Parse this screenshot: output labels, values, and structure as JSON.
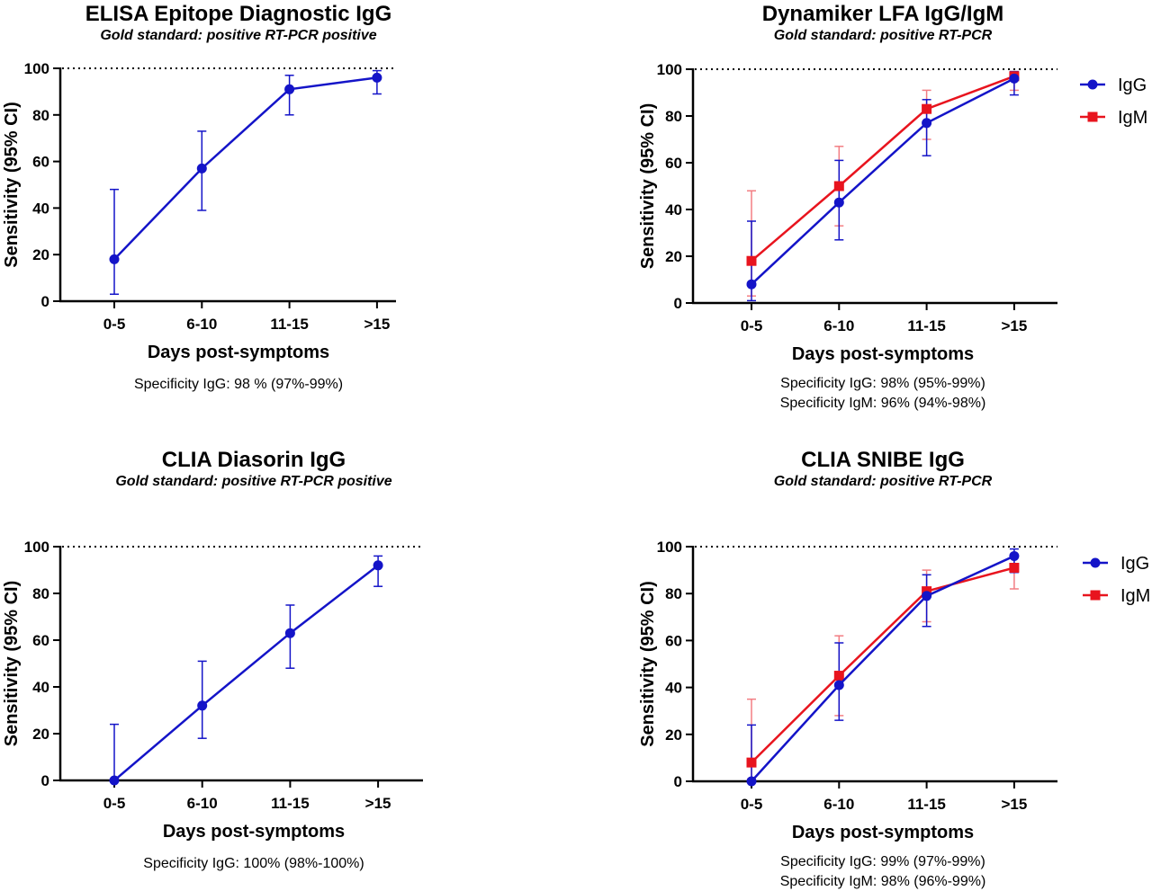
{
  "chart_data": [
    {
      "type": "line",
      "title": "ELISA Epitope Diagnostic IgG",
      "subtitle": "Gold standard: positive RT-PCR positive",
      "xlabel": "Days post-symptoms",
      "ylabel": "Sensitivity (95% CI)",
      "categories": [
        "0-5",
        "6-10",
        "11-15",
        ">15"
      ],
      "ylim": [
        0,
        100
      ],
      "yticks": [
        0,
        20,
        40,
        60,
        80,
        100
      ],
      "reference_line": 100,
      "series": [
        {
          "color": "#1414c8",
          "marker": "circle",
          "values": [
            18,
            57,
            91,
            96
          ],
          "ci_low": [
            3,
            39,
            80,
            89
          ],
          "ci_high": [
            48,
            73,
            97,
            99
          ]
        }
      ],
      "legend": [],
      "notes": [
        "Specificity IgG: 98 % (97%-99%)"
      ]
    },
    {
      "type": "line",
      "title": "Dynamiker LFA IgG/IgM",
      "subtitle": "Gold standard: positive RT-PCR",
      "xlabel": "Days post-symptoms",
      "ylabel": "Sensitivity (95% CI)",
      "categories": [
        "0-5",
        "6-10",
        "11-15",
        ">15"
      ],
      "ylim": [
        0,
        100
      ],
      "yticks": [
        0,
        20,
        40,
        60,
        80,
        100
      ],
      "reference_line": 100,
      "series": [
        {
          "name": "IgM",
          "color": "#e8141e",
          "marker": "square",
          "values": [
            18,
            50,
            83,
            97
          ],
          "ci_low": [
            3,
            33,
            70,
            91
          ],
          "ci_high": [
            48,
            67,
            91,
            99
          ]
        },
        {
          "name": "IgG",
          "color": "#1414c8",
          "marker": "circle",
          "values": [
            8,
            43,
            77,
            96
          ],
          "ci_low": [
            1,
            27,
            63,
            89
          ],
          "ci_high": [
            35,
            61,
            87,
            99
          ]
        }
      ],
      "legend": [
        "IgG",
        "IgM"
      ],
      "notes": [
        "Specificity IgG: 98% (95%-99%)",
        "Specificity IgM: 96% (94%-98%)"
      ]
    },
    {
      "type": "line",
      "title": "CLIA Diasorin IgG",
      "subtitle": "Gold standard: positive RT-PCR positive",
      "xlabel": "Days post-symptoms",
      "ylabel": "Sensitivity (95% CI)",
      "categories": [
        "0-5",
        "6-10",
        "11-15",
        ">15"
      ],
      "ylim": [
        0,
        100
      ],
      "yticks": [
        0,
        20,
        40,
        60,
        80,
        100
      ],
      "reference_line": 100,
      "series": [
        {
          "color": "#1414c8",
          "marker": "circle",
          "values": [
            0,
            32,
            63,
            92
          ],
          "ci_low": [
            0,
            18,
            48,
            83
          ],
          "ci_high": [
            24,
            51,
            75,
            96
          ]
        }
      ],
      "legend": [],
      "notes": [
        "Specificity IgG: 100% (98%-100%)"
      ]
    },
    {
      "type": "line",
      "title": "CLIA SNIBE IgG",
      "subtitle": "Gold standard: positive RT-PCR",
      "xlabel": "Days post-symptoms",
      "ylabel": "Sensitivity (95% CI)",
      "categories": [
        "0-5",
        "6-10",
        "11-15",
        ">15"
      ],
      "ylim": [
        0,
        100
      ],
      "yticks": [
        0,
        20,
        40,
        60,
        80,
        100
      ],
      "reference_line": 100,
      "series": [
        {
          "name": "IgM",
          "color": "#e8141e",
          "marker": "square",
          "values": [
            8,
            45,
            81,
            91
          ],
          "ci_low": [
            1,
            28,
            68,
            82
          ],
          "ci_high": [
            35,
            62,
            90,
            96
          ]
        },
        {
          "name": "IgG",
          "color": "#1414c8",
          "marker": "circle",
          "values": [
            0,
            41,
            79,
            96
          ],
          "ci_low": [
            0,
            26,
            66,
            89
          ],
          "ci_high": [
            24,
            59,
            88,
            99
          ]
        }
      ],
      "legend": [
        "IgG",
        "IgM"
      ],
      "notes": [
        "Specificity IgG: 99% (97%-99%)",
        "Specificity IgM: 98% (96%-99%)"
      ]
    }
  ]
}
